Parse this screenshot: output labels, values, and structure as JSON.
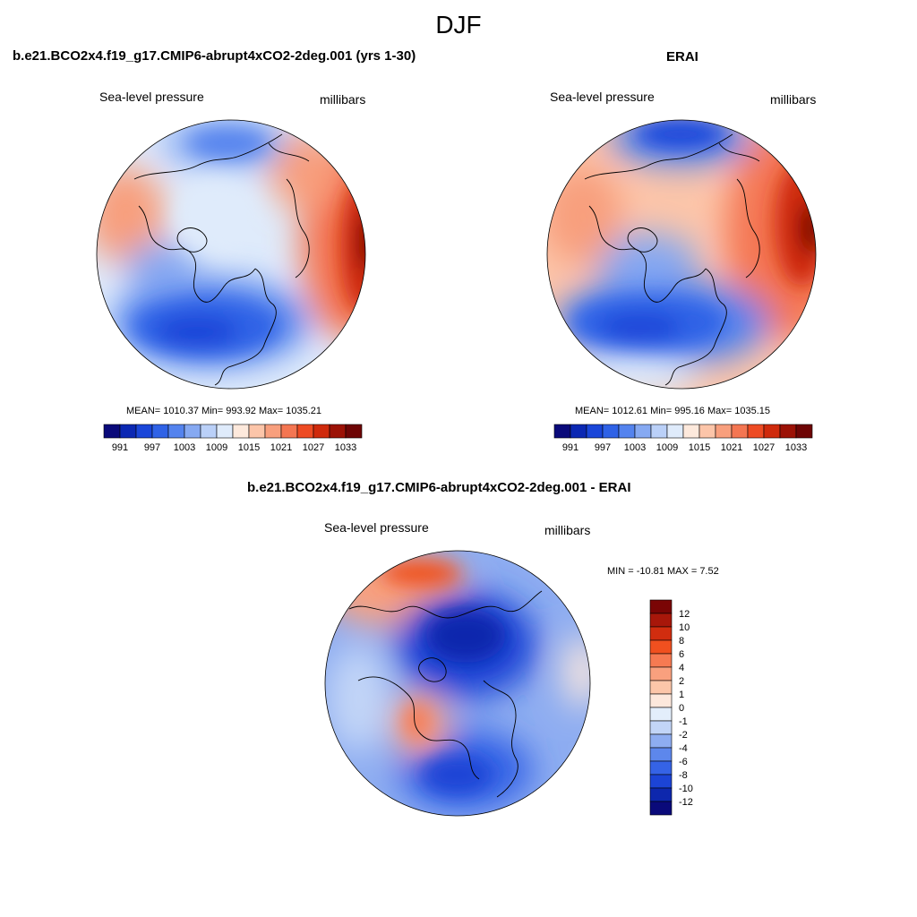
{
  "figure": {
    "season": "DJF"
  },
  "chart_data": [
    {
      "type": "heatmap",
      "projection": "north-polar-stereographic",
      "title": "b.e21.BCO2x4.f19_g17.CMIP6-abrupt4xCO2-2deg.001 (yrs 1-30)",
      "left_label": "Sea-level pressure",
      "right_label": "millibars",
      "stats_text": "MEAN= 1010.37  Min= 993.92  Max= 1035.21",
      "stats": {
        "mean": 1010.37,
        "min": 993.92,
        "max": 1035.21
      },
      "colorbar": {
        "orientation": "horizontal",
        "levels": [
          991,
          994,
          997,
          1000,
          1003,
          1006,
          1009,
          1012,
          1015,
          1018,
          1021,
          1024,
          1027,
          1030,
          1033
        ],
        "tick_labels": [
          "991",
          "997",
          "1003",
          "1009",
          "1015",
          "1021",
          "1027",
          "1033"
        ],
        "colors": [
          "#0a0a7a",
          "#0b28b3",
          "#1a46d9",
          "#2f62e6",
          "#5483ee",
          "#86a9f2",
          "#bad0f8",
          "#dfebfb",
          "#fde9dc",
          "#fcc5a9",
          "#f89f7d",
          "#f47652",
          "#ee4b23",
          "#cf2a0c",
          "#9c1206",
          "#6e0505"
        ]
      }
    },
    {
      "type": "heatmap",
      "projection": "north-polar-stereographic",
      "title": "ERAI",
      "left_label": "Sea-level pressure",
      "right_label": "millibars",
      "stats_text": "MEAN= 1012.61  Min= 995.16  Max= 1035.15",
      "stats": {
        "mean": 1012.61,
        "min": 995.16,
        "max": 1035.15
      },
      "colorbar": {
        "orientation": "horizontal",
        "levels": [
          991,
          994,
          997,
          1000,
          1003,
          1006,
          1009,
          1012,
          1015,
          1018,
          1021,
          1024,
          1027,
          1030,
          1033
        ],
        "tick_labels": [
          "991",
          "997",
          "1003",
          "1009",
          "1015",
          "1021",
          "1027",
          "1033"
        ],
        "colors": [
          "#0a0a7a",
          "#0b28b3",
          "#1a46d9",
          "#2f62e6",
          "#5483ee",
          "#86a9f2",
          "#bad0f8",
          "#dfebfb",
          "#fde9dc",
          "#fcc5a9",
          "#f89f7d",
          "#f47652",
          "#ee4b23",
          "#cf2a0c",
          "#9c1206",
          "#6e0505"
        ]
      }
    },
    {
      "type": "heatmap",
      "projection": "north-polar-stereographic",
      "title": "b.e21.BCO2x4.f19_g17.CMIP6-abrupt4xCO2-2deg.001 - ERAI",
      "left_label": "Sea-level pressure",
      "right_label": "millibars",
      "stats_text": "MIN = -10.81 MAX =   7.52",
      "stats": {
        "min": -10.81,
        "max": 7.52
      },
      "colorbar": {
        "orientation": "vertical",
        "tick_labels": [
          "12",
          "10",
          "8",
          "6",
          "4",
          "2",
          "1",
          "0",
          "-1",
          "-2",
          "-4",
          "-6",
          "-8",
          "-10",
          "-12"
        ],
        "colors": [
          "#7a0505",
          "#a8170a",
          "#d12d0f",
          "#f0501f",
          "#f67a52",
          "#f9a07e",
          "#fcc6a9",
          "#fde8dc",
          "#e3eefb",
          "#c2d5f7",
          "#8eadf1",
          "#5d87ec",
          "#3563e6",
          "#1c44d6",
          "#0d27ad",
          "#0a0a7a"
        ]
      }
    }
  ]
}
